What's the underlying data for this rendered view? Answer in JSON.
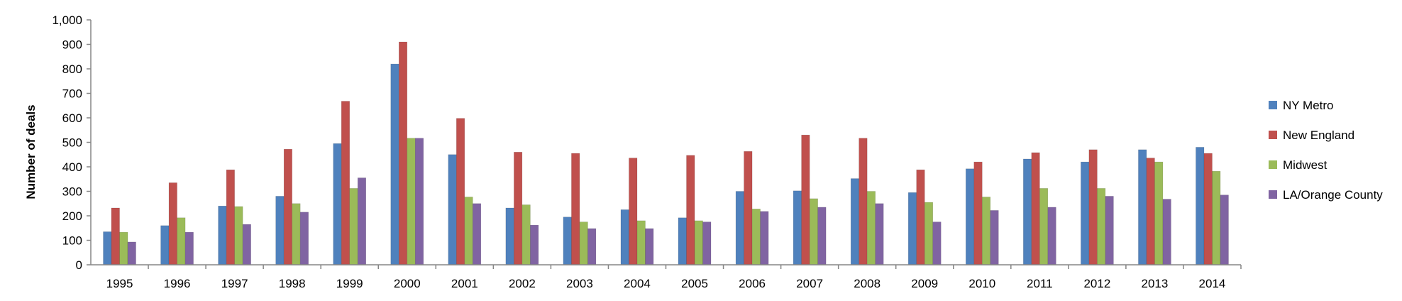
{
  "chart_data": {
    "type": "bar",
    "ylabel": "Number of deals",
    "xlabel": "",
    "ylim": [
      0,
      1000
    ],
    "yticks": [
      "0",
      "100",
      "200",
      "300",
      "400",
      "500",
      "600",
      "700",
      "800",
      "900",
      "1,000"
    ],
    "legend_position": "right",
    "grid": false,
    "categories": [
      "1995",
      "1996",
      "1997",
      "1998",
      "1999",
      "2000",
      "2001",
      "2002",
      "2003",
      "2004",
      "2005",
      "2006",
      "2007",
      "2008",
      "2009",
      "2010",
      "2011",
      "2012",
      "2013",
      "2014"
    ],
    "series": [
      {
        "name": "NY Metro",
        "color": "#4f81bd",
        "values": [
          135,
          160,
          240,
          280,
          495,
          820,
          450,
          232,
          195,
          225,
          192,
          300,
          302,
          352,
          295,
          392,
          432,
          420,
          470,
          480
        ]
      },
      {
        "name": "New England",
        "color": "#c0504d",
        "values": [
          232,
          335,
          388,
          472,
          668,
          910,
          598,
          460,
          455,
          436,
          447,
          463,
          530,
          517,
          388,
          420,
          458,
          470,
          436,
          455
        ]
      },
      {
        "name": "Midwest",
        "color": "#9bbb59",
        "values": [
          133,
          192,
          238,
          250,
          312,
          517,
          277,
          245,
          175,
          180,
          180,
          228,
          270,
          300,
          255,
          277,
          312,
          312,
          420,
          382
        ]
      },
      {
        "name": "LA/Orange County",
        "color": "#8064a2",
        "values": [
          93,
          133,
          165,
          215,
          355,
          517,
          250,
          162,
          148,
          148,
          175,
          218,
          235,
          250,
          175,
          222,
          235,
          280,
          268,
          285
        ]
      }
    ]
  }
}
